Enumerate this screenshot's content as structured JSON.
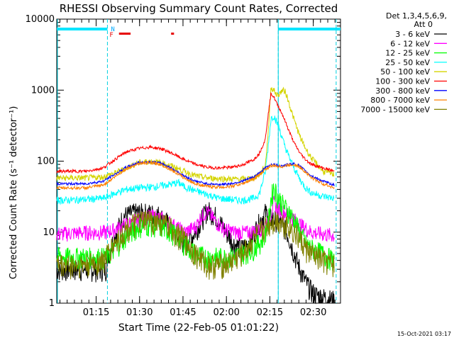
{
  "chart_data": {
    "type": "line",
    "title": "RHESSI Observing Summary Count Rates, Corrected",
    "xlabel": "Start Time (22-Feb-05 01:01:22)",
    "ylabel": "Corrected Count Rate (s⁻¹ detector⁻¹)",
    "yscale": "log",
    "ylim": [
      1,
      10000
    ],
    "xlim_minutes": [
      0,
      98
    ],
    "x_tick_labels": [
      "01:15",
      "01:30",
      "01:45",
      "02:00",
      "02:15",
      "02:30"
    ],
    "x_tick_minutes": [
      13.6,
      28.6,
      43.6,
      58.6,
      73.6,
      88.6
    ],
    "y_tick_labels": [
      "1",
      "10",
      "100",
      "1000",
      "10000"
    ],
    "y_tick_values": [
      1,
      10,
      100,
      1000,
      10000
    ],
    "legend": {
      "header_line1": "Det 1,3,4,5,6,9,",
      "header_line2": "Att 0",
      "position": "right"
    },
    "annotations": {
      "night_label": "N",
      "flare_label": "F",
      "saa_label": "",
      "timestamp": "15-Oct-2021 03:17"
    },
    "night_intervals_minutes": [
      [
        0,
        17.5
      ],
      [
        76.5,
        98
      ]
    ],
    "flare_intervals_minutes": [
      [
        21.5,
        25.5
      ],
      [
        39.5,
        40.5
      ]
    ],
    "data_gap_markers_minutes": [
      17.5,
      76.5,
      96.5
    ],
    "series": [
      {
        "name": "3 - 6 keV",
        "color": "#000000",
        "x": [
          0,
          17,
          17.6,
          20,
          23,
          27,
          31,
          35,
          38,
          41,
          44,
          47,
          50,
          52,
          55,
          58,
          61,
          64,
          67,
          70,
          72,
          74,
          76,
          78,
          80,
          82,
          84,
          86,
          88,
          90,
          93,
          96
        ],
        "y": [
          3,
          3,
          4.5,
          9,
          17,
          19,
          19,
          18,
          14,
          9,
          7,
          9,
          15,
          21,
          17,
          11,
          7,
          6,
          8,
          14,
          19,
          16,
          15,
          13,
          9,
          5,
          3,
          2,
          1.5,
          1.3,
          1.2,
          1.1
        ]
      },
      {
        "name": "6 - 12 keV",
        "color": "#ff00ff",
        "x": [
          0,
          10,
          17,
          20,
          24,
          28,
          32,
          36,
          40,
          44,
          48,
          50,
          52,
          55,
          58,
          62,
          66,
          70,
          72,
          74,
          75,
          76,
          78,
          80,
          84,
          88,
          92,
          96
        ],
        "y": [
          9.5,
          10,
          10,
          11,
          13,
          15,
          17,
          16,
          13,
          10,
          12,
          17,
          20,
          14,
          11,
          10,
          10,
          11,
          13,
          18,
          26,
          22,
          20,
          18,
          13,
          10,
          9.5,
          9
        ]
      },
      {
        "name": "12 - 25 keV",
        "color": "#00ff00",
        "x": [
          0,
          10,
          17,
          20,
          24,
          28,
          32,
          36,
          40,
          44,
          48,
          52,
          56,
          60,
          64,
          68,
          71,
          73,
          74,
          75,
          76,
          78,
          80,
          82,
          84,
          86,
          88,
          92,
          96
        ],
        "y": [
          4.5,
          4.5,
          4.5,
          6,
          9,
          12,
          13,
          12,
          10,
          7,
          5,
          4.5,
          4.5,
          4.5,
          5,
          6,
          8,
          13,
          30,
          45,
          34,
          25,
          20,
          15,
          10,
          7,
          6,
          5,
          4
        ]
      },
      {
        "name": "25 - 50 keV",
        "color": "#00ffff",
        "x": [
          0,
          10,
          16,
          20,
          24,
          28,
          32,
          36,
          40,
          42,
          44,
          48,
          52,
          56,
          60,
          64,
          68,
          70,
          72,
          73,
          74,
          75,
          76,
          77,
          78,
          80,
          82,
          84,
          86,
          88,
          92,
          96
        ],
        "y": [
          28,
          29,
          30,
          35,
          40,
          42,
          43,
          45,
          48,
          50,
          44,
          38,
          34,
          30,
          29,
          28,
          30,
          35,
          70,
          160,
          400,
          440,
          350,
          280,
          200,
          120,
          80,
          55,
          42,
          36,
          32,
          30
        ]
      },
      {
        "name": "50 - 100 keV",
        "color": "#d4d400",
        "x": [
          0,
          10,
          16,
          20,
          24,
          28,
          32,
          36,
          40,
          44,
          48,
          52,
          56,
          60,
          64,
          68,
          70,
          72,
          73,
          74,
          75,
          76,
          77,
          78,
          79,
          80,
          82,
          84,
          86,
          88,
          92,
          96
        ],
        "y": [
          58,
          58,
          60,
          68,
          80,
          95,
          100,
          95,
          85,
          72,
          62,
          58,
          57,
          56,
          56,
          58,
          64,
          85,
          250,
          1100,
          1000,
          850,
          900,
          1000,
          950,
          700,
          380,
          220,
          150,
          110,
          72,
          65
        ]
      },
      {
        "name": "100 - 300 keV",
        "color": "#ff0000",
        "x": [
          0,
          10,
          16,
          20,
          24,
          28,
          32,
          36,
          40,
          44,
          48,
          52,
          56,
          60,
          64,
          68,
          70,
          72,
          73,
          74,
          75,
          76,
          78,
          80,
          82,
          84,
          86,
          88,
          92,
          96
        ],
        "y": [
          72,
          72,
          80,
          105,
          135,
          150,
          158,
          150,
          128,
          105,
          90,
          82,
          80,
          82,
          88,
          105,
          130,
          200,
          450,
          900,
          800,
          650,
          450,
          280,
          180,
          130,
          105,
          90,
          80,
          72
        ]
      },
      {
        "name": "300 - 800 keV",
        "color": "#0000ff",
        "x": [
          0,
          10,
          16,
          20,
          24,
          28,
          32,
          36,
          40,
          44,
          48,
          52,
          56,
          60,
          64,
          68,
          70,
          72,
          74,
          76,
          78,
          80,
          82,
          84,
          86,
          88,
          92,
          96
        ],
        "y": [
          48,
          48,
          52,
          65,
          82,
          95,
          98,
          94,
          78,
          62,
          52,
          48,
          47,
          48,
          52,
          60,
          68,
          80,
          90,
          88,
          86,
          90,
          92,
          85,
          72,
          62,
          52,
          46
        ]
      },
      {
        "name": "800 - 7000 keV",
        "color": "#ff8000",
        "x": [
          0,
          10,
          16,
          20,
          24,
          28,
          32,
          36,
          40,
          44,
          48,
          52,
          56,
          60,
          64,
          68,
          70,
          72,
          74,
          76,
          78,
          80,
          82,
          84,
          86,
          88,
          92,
          96
        ],
        "y": [
          42,
          42,
          46,
          60,
          78,
          92,
          95,
          90,
          74,
          58,
          48,
          44,
          43,
          44,
          48,
          56,
          64,
          76,
          86,
          85,
          84,
          88,
          90,
          82,
          70,
          58,
          48,
          42
        ]
      },
      {
        "name": "7000 - 15000 keV",
        "color": "#808000",
        "x": [
          0,
          10,
          16,
          20,
          24,
          28,
          32,
          36,
          40,
          44,
          48,
          52,
          56,
          60,
          64,
          68,
          70,
          72,
          74,
          76,
          78,
          80,
          82,
          84,
          86,
          88,
          92,
          96
        ],
        "y": [
          3.5,
          3.5,
          4,
          7,
          11,
          14,
          15,
          14,
          11,
          8,
          5,
          3.5,
          3.5,
          3.8,
          5,
          8,
          10,
          12,
          14,
          15,
          14,
          13,
          10,
          8,
          6,
          5,
          4,
          3.5
        ]
      }
    ]
  }
}
